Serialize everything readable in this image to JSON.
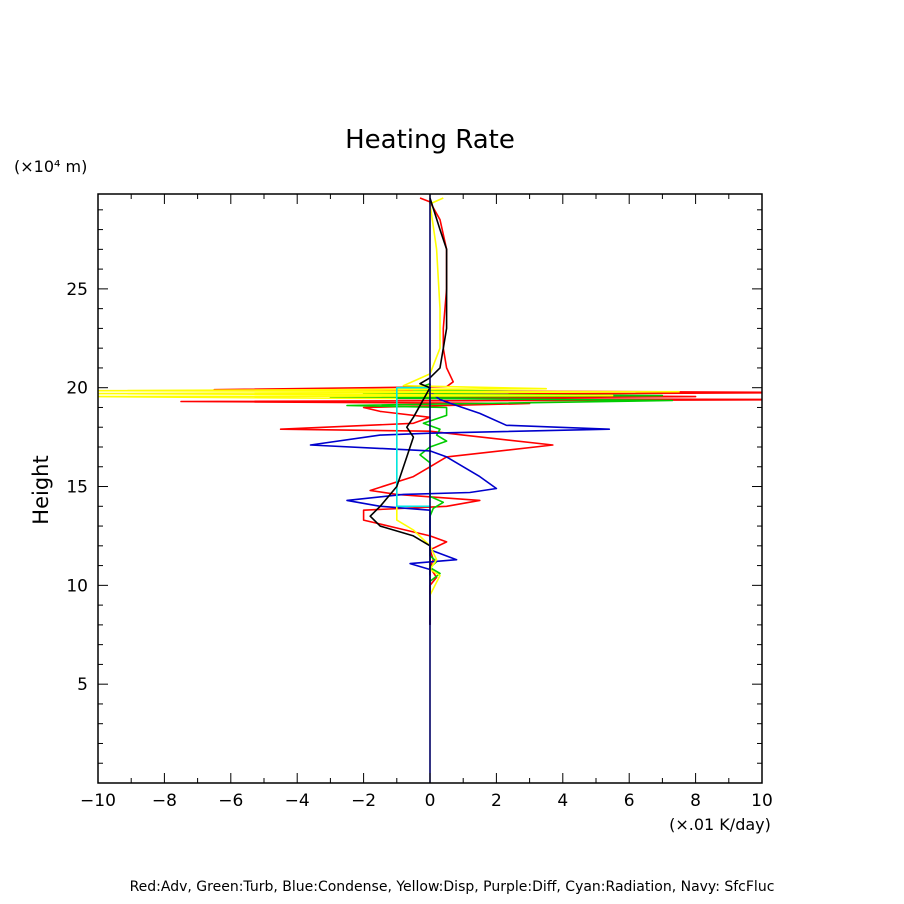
{
  "chart_data": {
    "type": "line",
    "title": "Heating Rate",
    "ylabel": "Height",
    "y_unit": "(×10⁴ m)",
    "x_unit": "(×.01 K/day)",
    "legend_text": "Red:Adv, Green:Turb, Blue:Condense, Yellow:Disp, Purple:Diff, Cyan:Radiation, Navy: SfcFluc",
    "xlim": [
      -10,
      10
    ],
    "ylim": [
      0,
      29.8
    ],
    "x_ticks": [
      -10,
      -8,
      -6,
      -4,
      -2,
      0,
      2,
      4,
      6,
      8,
      10
    ],
    "x_tick_labels": [
      "−10",
      "−8",
      "−6",
      "−4",
      "−2",
      "0",
      "2",
      "4",
      "6",
      "8",
      "10"
    ],
    "y_ticks": [
      5,
      10,
      15,
      20,
      25
    ],
    "y_tick_labels": [
      "5",
      "10",
      "15",
      "20",
      "25"
    ],
    "grid": false,
    "series": [
      {
        "color": "#ff0000",
        "points": [
          [
            -0.3,
            29.6
          ],
          [
            0,
            29.4
          ],
          [
            0.3,
            28.5
          ],
          [
            0.5,
            27
          ],
          [
            0.5,
            25
          ],
          [
            0.4,
            23
          ],
          [
            0.4,
            22
          ],
          [
            0.5,
            21
          ],
          [
            0.7,
            20.3
          ],
          [
            0.5,
            20.05
          ],
          [
            -6.5,
            19.9
          ],
          [
            0,
            19.85
          ],
          [
            12,
            19.75
          ],
          [
            -2,
            19.65
          ],
          [
            8,
            19.55
          ],
          [
            -1,
            19.45
          ],
          [
            12,
            19.4
          ],
          [
            -7.5,
            19.3
          ],
          [
            3,
            19.2
          ],
          [
            -2,
            19.0
          ],
          [
            -1.5,
            18.8
          ],
          [
            0,
            18.5
          ],
          [
            -0.5,
            18.2
          ],
          [
            -4.5,
            17.9
          ],
          [
            0,
            17.8
          ],
          [
            1,
            17.6
          ],
          [
            3.7,
            17.1
          ],
          [
            0.5,
            16.5
          ],
          [
            0,
            16
          ],
          [
            -0.5,
            15.5
          ],
          [
            -1.8,
            14.8
          ],
          [
            -1,
            14.6
          ],
          [
            1.5,
            14.3
          ],
          [
            0.5,
            14.0
          ],
          [
            -2,
            13.8
          ],
          [
            -2,
            13.3
          ],
          [
            -1,
            12.9
          ],
          [
            0,
            12.5
          ],
          [
            0.5,
            12.2
          ],
          [
            0,
            11.8
          ],
          [
            0.1,
            11.3
          ],
          [
            0,
            10.9
          ],
          [
            0.2,
            10.4
          ],
          [
            0,
            10
          ],
          [
            0,
            8
          ]
        ]
      },
      {
        "color": "#00cc00",
        "points": [
          [
            0,
            20.2
          ],
          [
            -0.5,
            19.9
          ],
          [
            3,
            19.8
          ],
          [
            -2,
            19.7
          ],
          [
            7,
            19.6
          ],
          [
            -3,
            19.5
          ],
          [
            7.3,
            19.35
          ],
          [
            -2.5,
            19.1
          ],
          [
            0.5,
            19.0
          ],
          [
            0.5,
            18.6
          ],
          [
            -0.2,
            18.2
          ],
          [
            0.3,
            17.9
          ],
          [
            0.2,
            17.6
          ],
          [
            0.5,
            17.3
          ],
          [
            0,
            17
          ],
          [
            -0.3,
            16.6
          ],
          [
            0,
            16.2
          ],
          [
            0,
            15.5
          ],
          [
            0,
            14.5
          ],
          [
            0.4,
            14.2
          ],
          [
            0.1,
            13.9
          ],
          [
            0,
            13.5
          ],
          [
            0,
            11.5
          ],
          [
            0.2,
            11.2
          ],
          [
            0,
            10.9
          ],
          [
            0.3,
            10.6
          ],
          [
            0,
            10.2
          ]
        ]
      },
      {
        "color": "#0000cc",
        "points": [
          [
            0,
            20.2
          ],
          [
            0,
            19.8
          ],
          [
            0.3,
            19.4
          ],
          [
            0.8,
            19.1
          ],
          [
            1.5,
            18.7
          ],
          [
            2.3,
            18.1
          ],
          [
            5.4,
            17.9
          ],
          [
            0,
            17.7
          ],
          [
            -1.5,
            17.6
          ],
          [
            -3.6,
            17.1
          ],
          [
            0,
            16.8
          ],
          [
            0.5,
            16.5
          ],
          [
            1.5,
            15.5
          ],
          [
            2,
            14.9
          ],
          [
            1.2,
            14.7
          ],
          [
            -0.8,
            14.6
          ],
          [
            -2.5,
            14.3
          ],
          [
            -1.5,
            14.0
          ],
          [
            0,
            13.8
          ],
          [
            0,
            11.8
          ],
          [
            0.8,
            11.3
          ],
          [
            -0.6,
            11.1
          ],
          [
            0,
            10.8
          ],
          [
            0,
            10.5
          ]
        ]
      },
      {
        "color": "#ffff00",
        "points": [
          [
            0.4,
            29.6
          ],
          [
            0,
            29.3
          ],
          [
            0.2,
            27
          ],
          [
            0.3,
            24
          ],
          [
            0.3,
            22
          ],
          [
            0,
            20.7
          ],
          [
            -0.8,
            20.1
          ],
          [
            3.5,
            19.95
          ],
          [
            -10,
            19.85
          ],
          [
            7.5,
            19.8
          ],
          [
            -10,
            19.7
          ],
          [
            5.5,
            19.6
          ],
          [
            -10,
            19.55
          ],
          [
            -1,
            19.45
          ],
          [
            -1,
            18
          ],
          [
            -1,
            15
          ],
          [
            -1,
            14
          ],
          [
            -1,
            13.3
          ],
          [
            -0.5,
            12.8
          ],
          [
            0,
            12
          ],
          [
            0.2,
            11.3
          ],
          [
            0,
            10.8
          ],
          [
            0.3,
            10.5
          ],
          [
            0,
            9.5
          ],
          [
            0,
            8.5
          ]
        ]
      },
      {
        "color": "#00e5e5",
        "points": [
          [
            0,
            20
          ],
          [
            -1,
            20
          ],
          [
            -1,
            14
          ],
          [
            0,
            14
          ]
        ]
      },
      {
        "color": "#000000",
        "points": [
          [
            0,
            29.6
          ],
          [
            0.3,
            28
          ],
          [
            0.5,
            27
          ],
          [
            0.5,
            25
          ],
          [
            0.5,
            23
          ],
          [
            0.4,
            22
          ],
          [
            0.3,
            21
          ],
          [
            0,
            20.5
          ],
          [
            -0.3,
            20.2
          ],
          [
            0,
            20
          ],
          [
            -0.5,
            18.5
          ],
          [
            -0.7,
            18
          ],
          [
            -0.5,
            17.5
          ],
          [
            -0.7,
            16.5
          ],
          [
            -1,
            15
          ],
          [
            -1.5,
            14
          ],
          [
            -1.8,
            13.5
          ],
          [
            -1.5,
            13
          ],
          [
            -0.5,
            12.5
          ],
          [
            0,
            12
          ],
          [
            0,
            10.5
          ],
          [
            0,
            8
          ]
        ]
      },
      {
        "color": "#000066",
        "points": [
          [
            0,
            29.8
          ],
          [
            0,
            0
          ]
        ]
      }
    ]
  }
}
